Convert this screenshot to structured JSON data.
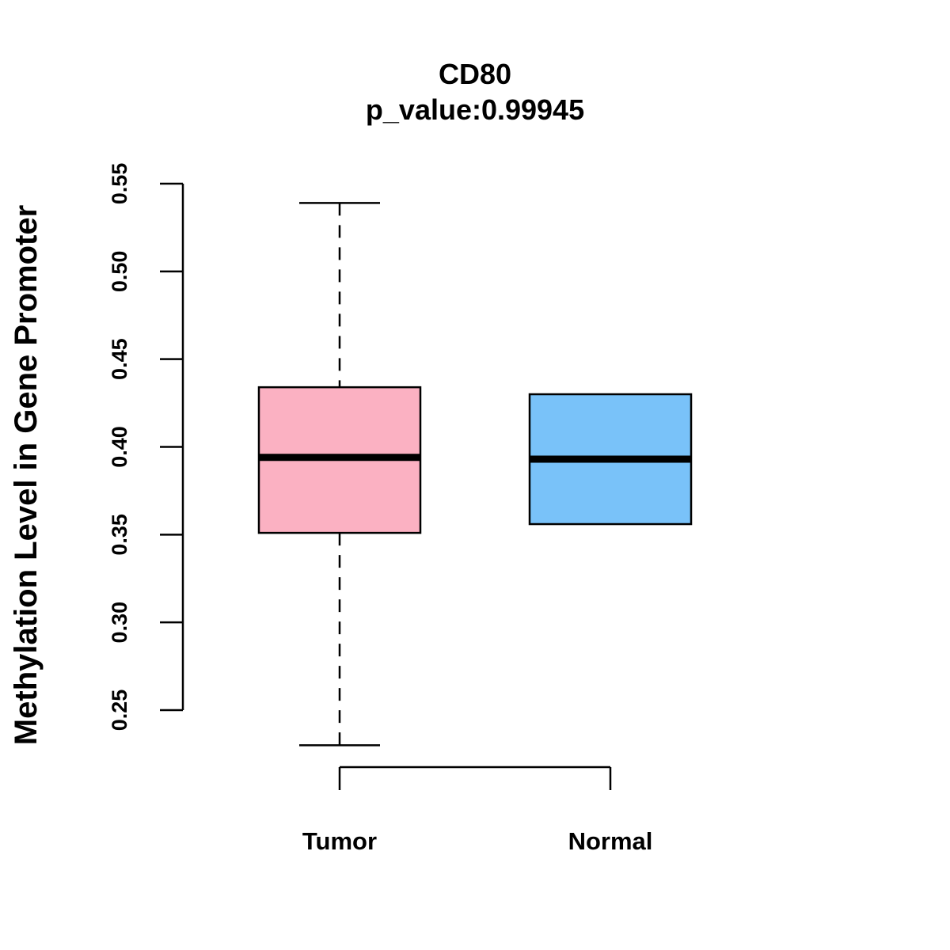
{
  "chart_data": {
    "type": "boxplot",
    "title": "CD80",
    "subtitle": "p_value:0.99945",
    "xlabel": "",
    "ylabel": "Methylation Level in Gene Promoter",
    "ylim": [
      0.25,
      0.55
    ],
    "yticks": [
      0.25,
      0.3,
      0.35,
      0.4,
      0.45,
      0.5,
      0.55
    ],
    "ytick_labels": [
      "0.25",
      "0.30",
      "0.35",
      "0.40",
      "0.45",
      "0.50",
      "0.55"
    ],
    "categories": [
      "Tumor",
      "Normal"
    ],
    "boxes": [
      {
        "name": "Tumor",
        "whisker_low": 0.23,
        "q1": 0.351,
        "median": 0.394,
        "q3": 0.434,
        "whisker_high": 0.539,
        "color": "#FBB1C2"
      },
      {
        "name": "Normal",
        "whisker_low": 0.356,
        "q1": 0.356,
        "median": 0.393,
        "q3": 0.43,
        "whisker_high": 0.43,
        "color": "#79C2F9"
      }
    ],
    "grid": false
  }
}
